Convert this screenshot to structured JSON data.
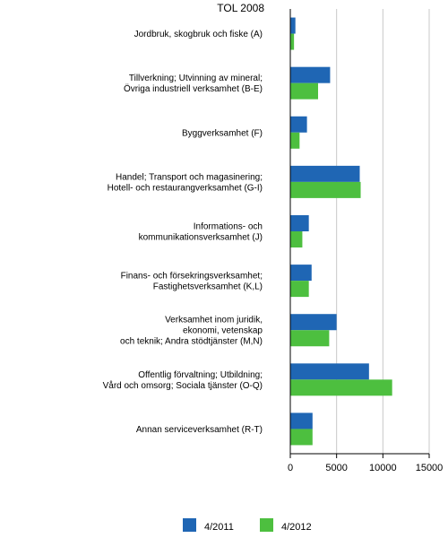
{
  "chart_data": {
    "type": "bar",
    "orientation": "horizontal",
    "subtitle": "TOL 2008",
    "categories": [
      [
        "Jordbruk, skogbruk och fiske (A)"
      ],
      [
        "Tillverkning; Utvinning av mineral;",
        "Övriga industriell verksamhet (B-E)"
      ],
      [
        "Byggverksamhet (F)"
      ],
      [
        "Handel; Transport och magasinering;",
        "Hotell- och restaurangverksamhet (G-I)"
      ],
      [
        "Informations- och",
        "kommunikationsverksamhet (J)"
      ],
      [
        "Finans- och försekringsverksamhet;",
        "Fastighetsverksamhet (K,L)"
      ],
      [
        "Verksamhet inom juridik,",
        "ekonomi, vetenskap",
        "och teknik; Andra stödtjänster (M,N)"
      ],
      [
        "Offentlig förvaltning; Utbildning;",
        "Vård och omsorg; Sociala tjänster (O-Q)"
      ],
      [
        "Annan serviceverksamhet (R-T)"
      ]
    ],
    "series": [
      {
        "name": "4/2011",
        "color": "#1f66b4",
        "values": [
          550,
          4300,
          1800,
          7500,
          2000,
          2300,
          5000,
          8500,
          2400
        ]
      },
      {
        "name": "4/2012",
        "color": "#4dbf3f",
        "values": [
          400,
          3000,
          1000,
          7600,
          1300,
          2000,
          4200,
          11000,
          2400
        ]
      }
    ],
    "xlim": [
      0,
      15000
    ],
    "xticks": [
      0,
      5000,
      10000,
      15000
    ],
    "xlabel": "",
    "ylabel": "",
    "grid": "vertical",
    "legend": "bottom"
  }
}
